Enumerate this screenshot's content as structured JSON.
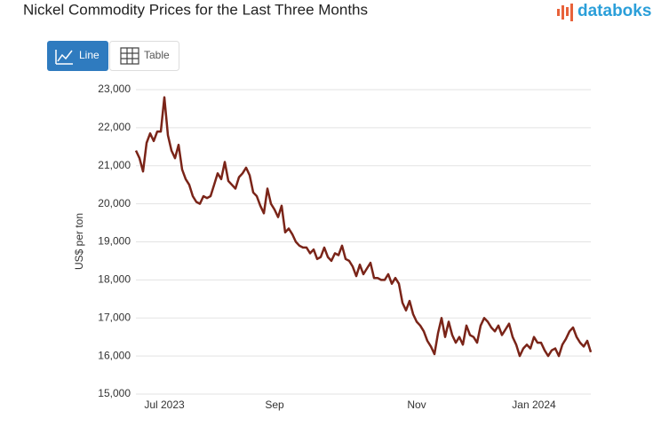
{
  "header": {
    "title": "Nickel Commodity Prices for the Last Three Months",
    "logo": "databoks"
  },
  "toggle": {
    "line": "Line",
    "table": "Table"
  },
  "chart_data": {
    "type": "line",
    "ylabel": "US$ per ton",
    "color": "#7a2418",
    "grid": true,
    "ylim": [
      15000,
      23000
    ],
    "yticks": [
      {
        "value": 15000,
        "label": "15,000"
      },
      {
        "value": 16000,
        "label": "16,000"
      },
      {
        "value": 17000,
        "label": "17,000"
      },
      {
        "value": 18000,
        "label": "18,000"
      },
      {
        "value": 19000,
        "label": "19,000"
      },
      {
        "value": 20000,
        "label": "20,000"
      },
      {
        "value": 21000,
        "label": "21,000"
      },
      {
        "value": 22000,
        "label": "22,000"
      },
      {
        "value": 23000,
        "label": "23,000"
      }
    ],
    "categories": [
      null,
      null,
      null,
      null,
      null,
      null,
      null,
      null,
      "Jul 2023",
      null,
      null,
      null,
      null,
      null,
      null,
      null,
      null,
      null,
      null,
      null,
      null,
      null,
      null,
      null,
      null,
      null,
      null,
      null,
      null,
      null,
      null,
      null,
      null,
      null,
      null,
      null,
      null,
      null,
      null,
      "Sep",
      null,
      null,
      null,
      null,
      null,
      null,
      null,
      null,
      null,
      null,
      null,
      null,
      null,
      null,
      null,
      null,
      null,
      null,
      null,
      null,
      null,
      null,
      null,
      null,
      null,
      null,
      null,
      null,
      null,
      null,
      null,
      null,
      null,
      null,
      null,
      null,
      null,
      null,
      null,
      "Nov",
      null,
      null,
      null,
      null,
      null,
      null,
      null,
      null,
      null,
      null,
      null,
      null,
      null,
      null,
      null,
      null,
      null,
      null,
      null,
      null,
      null,
      null,
      null,
      null,
      null,
      null,
      null,
      null,
      null,
      null,
      null,
      null,
      "Jan 2024",
      null,
      null,
      null,
      null,
      null,
      null,
      null,
      null,
      null,
      null,
      null,
      null,
      null,
      null,
      null,
      null
    ],
    "values": [
      21400,
      21200,
      20850,
      21600,
      21850,
      21650,
      21900,
      21900,
      22800,
      21800,
      21400,
      21200,
      21550,
      20900,
      20650,
      20500,
      20200,
      20050,
      20000,
      20200,
      20150,
      20200,
      20500,
      20800,
      20650,
      21100,
      20600,
      20500,
      20400,
      20700,
      20800,
      20950,
      20750,
      20300,
      20200,
      19950,
      19750,
      20400,
      20000,
      19850,
      19650,
      19950,
      19250,
      19350,
      19200,
      19000,
      18900,
      18850,
      18850,
      18700,
      18800,
      18550,
      18600,
      18850,
      18600,
      18500,
      18700,
      18650,
      18900,
      18550,
      18500,
      18350,
      18100,
      18400,
      18150,
      18300,
      18450,
      18050,
      18050,
      18000,
      18000,
      18150,
      17900,
      18050,
      17900,
      17400,
      17200,
      17450,
      17100,
      16900,
      16800,
      16650,
      16400,
      16250,
      16050,
      16600,
      17000,
      16500,
      16900,
      16550,
      16350,
      16500,
      16300,
      16800,
      16550,
      16500,
      16350,
      16800,
      17000,
      16900,
      16750,
      16650,
      16800,
      16550,
      16700,
      16850,
      16500,
      16300,
      16000,
      16200,
      16300,
      16200,
      16500,
      16350,
      16350,
      16150,
      16000,
      16150,
      16200,
      16000,
      16300,
      16450,
      16650,
      16750,
      16500,
      16350,
      16250,
      16400,
      16100
    ]
  }
}
